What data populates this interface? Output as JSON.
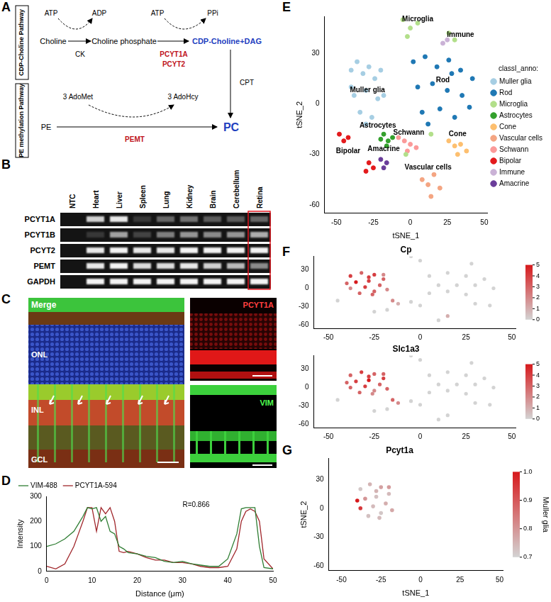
{
  "panel_labels": [
    "A",
    "B",
    "C",
    "D",
    "E",
    "F",
    "G"
  ],
  "diagram_A": {
    "pathways": [
      "CDP-Choline Pathway",
      "PE methylation Pathway"
    ],
    "nodes": {
      "choline": "Choline",
      "choline_phosphate": "Choline phosphate",
      "cdp_choline": "CDP-Choline+DAG",
      "pe": "PE",
      "pc": "PC"
    },
    "cofactors": {
      "atp_1": "ATP",
      "adp": "ADP",
      "atp_2": "ATP",
      "ppi": "PPi",
      "adomet": "3 AdoMet",
      "adohcy": "3 AdoHcy"
    },
    "enzymes": {
      "ck": "CK",
      "pcyt1a": "PCYT1A",
      "pcyt2": "PCYT2",
      "cpt": "CPT",
      "pemt": "PEMT"
    }
  },
  "gel_B": {
    "lanes": [
      "NTC",
      "Heart",
      "Liver",
      "Spleen",
      "Lung",
      "Kidney",
      "Brain",
      "Cerebellum",
      "Retina"
    ],
    "genes": [
      "PCYT1A",
      "PCYT1B",
      "PCYT2",
      "PEMT",
      "GAPDH"
    ],
    "band_intensity": [
      [
        0,
        0.8,
        0.9,
        0.15,
        0.35,
        0.4,
        0.3,
        0.3,
        0.35
      ],
      [
        0,
        0.15,
        0.6,
        0.2,
        0.45,
        0.55,
        0.5,
        0.55,
        0.65
      ],
      [
        0,
        0.9,
        0.95,
        0.9,
        0.9,
        0.95,
        0.95,
        0.95,
        0.95
      ],
      [
        0,
        0.9,
        0.95,
        0.85,
        0.85,
        0.9,
        0.8,
        0.7,
        0.5
      ],
      [
        0,
        0.95,
        0.95,
        0.95,
        0.95,
        0.95,
        0.95,
        0.95,
        0.95
      ]
    ],
    "highlight_lane": "Retina"
  },
  "image_C": {
    "merge_label": "Merge",
    "layers": [
      "ONL",
      "INL",
      "GCL"
    ],
    "channels": [
      "PCYT1A",
      "VIM"
    ]
  },
  "chart_data": [
    {
      "type": "line",
      "x": [
        0,
        2,
        4,
        6,
        7,
        8,
        9,
        10,
        11,
        12,
        13,
        14,
        15,
        16,
        17,
        18,
        20,
        22,
        24,
        26,
        28,
        30,
        32,
        34,
        36,
        38,
        40,
        42,
        43,
        44,
        45,
        46,
        47,
        48,
        50
      ],
      "series": [
        {
          "name": "VIM-488",
          "color": "#2e7d32",
          "values": [
            100,
            110,
            130,
            160,
            190,
            220,
            255,
            250,
            255,
            200,
            220,
            160,
            150,
            100,
            90,
            75,
            70,
            60,
            55,
            40,
            35,
            40,
            30,
            25,
            20,
            20,
            50,
            150,
            250,
            255,
            255,
            255,
            100,
            15,
            10
          ]
        },
        {
          "name": "PCYT1A-594",
          "color": "#a0262b",
          "values": [
            20,
            10,
            30,
            100,
            150,
            200,
            255,
            255,
            160,
            255,
            230,
            255,
            200,
            80,
            75,
            80,
            70,
            55,
            45,
            45,
            35,
            35,
            30,
            20,
            15,
            15,
            20,
            90,
            200,
            240,
            250,
            240,
            200,
            50,
            10
          ]
        }
      ],
      "xlabel": "Distance (μm)",
      "ylabel": "Intensity",
      "xlim": [
        0,
        50
      ],
      "xticks": [
        0,
        10,
        20,
        30,
        40,
        50
      ],
      "ylim": [
        0,
        300
      ],
      "yticks": [
        0,
        100,
        200,
        300
      ],
      "annotations": [
        {
          "text": "R=0.866",
          "x": 33,
          "y": 265
        }
      ],
      "legend": "upper left",
      "grid": false
    },
    {
      "type": "scatter",
      "series": [
        {
          "name": "Muller glia",
          "color": "#a6cee3",
          "x": [
            -40,
            -36,
            -32,
            -28,
            -24,
            -20,
            -38,
            -30,
            -22,
            -34,
            -26,
            -18,
            -30,
            -40
          ],
          "y": [
            20,
            25,
            18,
            22,
            15,
            20,
            5,
            8,
            3,
            -5,
            -8,
            5,
            -12,
            10
          ]
        },
        {
          "name": "Rod",
          "color": "#1f78b4",
          "x": [
            2,
            10,
            18,
            26,
            34,
            42,
            5,
            15,
            25,
            35,
            8,
            20,
            30,
            40,
            12,
            28
          ],
          "y": [
            25,
            28,
            22,
            26,
            20,
            15,
            10,
            12,
            8,
            5,
            -5,
            -3,
            -8,
            -2,
            -12,
            18
          ]
        },
        {
          "name": "Microglia",
          "color": "#b2df8a",
          "x": [
            -5,
            0,
            5,
            -2,
            26,
            30,
            14,
            -3
          ],
          "y": [
            50,
            45,
            48,
            40,
            42,
            38,
            -18,
            -30
          ]
        },
        {
          "name": "Astrocytes",
          "color": "#33a02c",
          "x": [
            -18,
            -15,
            -12,
            -16,
            -20
          ],
          "y": [
            -18,
            -22,
            -20,
            -25,
            -21
          ]
        },
        {
          "name": "Cone",
          "color": "#fdbf6f",
          "x": [
            26,
            30,
            34,
            38,
            32
          ],
          "y": [
            -22,
            -25,
            -24,
            -28,
            -30
          ]
        },
        {
          "name": "Vascular cells",
          "color": "#f4a582",
          "x": [
            8,
            12,
            16,
            20,
            14
          ],
          "y": [
            -45,
            -48,
            -42,
            -50,
            -55
          ]
        },
        {
          "name": "Schwann",
          "color": "#fb9a99",
          "x": [
            -8,
            -4,
            0,
            -2,
            4
          ],
          "y": [
            -20,
            -22,
            -24,
            -28,
            -26
          ]
        },
        {
          "name": "Bipolar",
          "color": "#e31a1c",
          "x": [
            -48,
            -45,
            -42,
            -28,
            -25,
            -30
          ],
          "y": [
            -18,
            -22,
            -20,
            -35,
            -38,
            -40
          ]
        },
        {
          "name": "Immune",
          "color": "#cab2d6",
          "x": [
            22,
            25
          ],
          "y": [
            36,
            38
          ]
        },
        {
          "name": "Amacrine",
          "color": "#6a3d9a",
          "x": [
            -20,
            -16,
            -18
          ],
          "y": [
            -33,
            -35,
            -38
          ]
        }
      ],
      "xlabel": "tSNE_1",
      "ylabel": "tSNE_2",
      "xlim": [
        -58,
        52
      ],
      "xticks": [
        -50,
        -25,
        0,
        25,
        50
      ],
      "ylim": [
        -65,
        52
      ],
      "yticks": [
        -60,
        -30,
        0,
        30
      ],
      "legend": "right",
      "legend_title": "classI_anno:",
      "annotations": [
        {
          "text": "Muller glia",
          "x": -29,
          "y": 8
        },
        {
          "text": "Rod",
          "x": 22,
          "y": 14
        },
        {
          "text": "Microglia",
          "x": 5,
          "y": 50
        },
        {
          "text": "Immune",
          "x": 34,
          "y": 41
        },
        {
          "text": "Astrocytes",
          "x": -22,
          "y": -13
        },
        {
          "text": "Schwann",
          "x": -1,
          "y": -17
        },
        {
          "text": "Cone",
          "x": 32,
          "y": -18
        },
        {
          "text": "Bipolar",
          "x": -42,
          "y": -28
        },
        {
          "text": "Amacrine",
          "x": -18,
          "y": -27
        },
        {
          "text": "Vascular cells",
          "x": 12,
          "y": -38
        }
      ],
      "grid": false
    },
    {
      "type": "scatter",
      "x": [
        -38,
        -32,
        -25,
        -20,
        -35,
        -28,
        -22,
        -38,
        -30,
        -25,
        -18,
        -33,
        -28,
        -40,
        -20,
        -26,
        5,
        15,
        25,
        35,
        10,
        20,
        30,
        40,
        15,
        5,
        25,
        0,
        -5,
        28,
        -15,
        -12,
        -5,
        0,
        30,
        38,
        15,
        10,
        -45,
        -25,
        -18
      ],
      "y": [
        20,
        25,
        22,
        15,
        10,
        12,
        5,
        0,
        2,
        -5,
        -2,
        -8,
        18,
        8,
        22,
        -10,
        20,
        25,
        20,
        15,
        5,
        5,
        5,
        0,
        -5,
        -8,
        -10,
        45,
        52,
        40,
        -20,
        -25,
        -22,
        -28,
        -25,
        -28,
        -45,
        -52,
        -20,
        -38,
        -35
      ],
      "series": [
        {
          "name": "Cp",
          "values": [
            4,
            3,
            4,
            3,
            5,
            4,
            3,
            2,
            4,
            3,
            2,
            3,
            4,
            3,
            2,
            3,
            0,
            0,
            0,
            0,
            0,
            0,
            0,
            0,
            0,
            0,
            0,
            0,
            0,
            0,
            2,
            1,
            0,
            0,
            0,
            0,
            1,
            0,
            0,
            0,
            0
          ]
        },
        {
          "name": "Slc1a3",
          "values": [
            3,
            4,
            3,
            4,
            4,
            5,
            3,
            3,
            4,
            2,
            3,
            3,
            4,
            3,
            3,
            2,
            0,
            0,
            0,
            0,
            0,
            0,
            0,
            0,
            0,
            0,
            0,
            0,
            0,
            0,
            3,
            2,
            0,
            0,
            0,
            0,
            0,
            0,
            0,
            0,
            0
          ]
        }
      ],
      "colorbar": {
        "range": [
          0,
          5
        ],
        "ticks": [
          0,
          1,
          2,
          3,
          4,
          5
        ]
      },
      "xlim": [
        -58,
        52
      ],
      "xticks": [
        -50,
        -25,
        0,
        25,
        50
      ],
      "ylim": [
        -65,
        52
      ],
      "yticks": [
        -60,
        -30,
        0,
        30
      ],
      "grid": false
    },
    {
      "type": "scatter",
      "title": "Pcyt1a",
      "x": [
        -38,
        -32,
        -25,
        -20,
        -35,
        -28,
        -22,
        -38,
        -30,
        -25,
        -18,
        -33,
        -28,
        -40,
        -20,
        -26
      ],
      "y": [
        20,
        25,
        22,
        15,
        10,
        12,
        5,
        0,
        2,
        -5,
        -2,
        -8,
        18,
        8,
        22,
        -10
      ],
      "values": [
        0.72,
        0.75,
        0.78,
        0.74,
        0.8,
        0.73,
        0.76,
        0.95,
        0.74,
        0.72,
        0.77,
        0.73,
        0.75,
        1.0,
        0.79,
        0.74
      ],
      "colorbar": {
        "title": "Muller glia",
        "range": [
          0.7,
          1.0
        ],
        "ticks": [
          0.7,
          0.8,
          0.9,
          {
            "value": 1,
            "label": "1.0"
          }
        ]
      },
      "xlabel": "tSNE_1",
      "ylabel": "tSNE_2",
      "xlim": [
        -58,
        52
      ],
      "xticks": [
        -50,
        -25,
        0,
        25,
        50
      ],
      "ylim": [
        -65,
        52
      ],
      "yticks": [
        -60,
        -30,
        0,
        30
      ],
      "grid": false
    }
  ]
}
